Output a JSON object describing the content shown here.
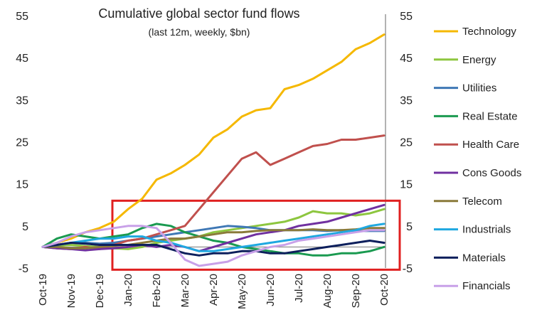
{
  "chart_data": {
    "type": "line",
    "title": "Cumulative global sector fund flows",
    "subtitle": "(last 12m, weekly, $bn)",
    "xlabel": "",
    "ylabel": "",
    "ylim": [
      -5,
      55
    ],
    "yticks": [
      55,
      45,
      35,
      25,
      15,
      5,
      -5
    ],
    "x_tick_labels": [
      "Oct-19",
      "Nov-19",
      "Dec-19",
      "Jan-20",
      "Feb-20",
      "Mar-20",
      "Apr-20",
      "May-20",
      "Jun-20",
      "Jul-20",
      "Aug-20",
      "Sep-20",
      "Oct-20"
    ],
    "x_months": [
      0,
      1,
      2,
      3,
      4,
      5,
      6,
      7,
      8,
      9,
      10,
      11,
      12
    ],
    "zero_line": true,
    "legend_position": "right",
    "highlight_box": {
      "x_range": [
        2.45,
        12.55
      ],
      "y_range": [
        -5.4,
        11.0
      ],
      "color": "#e02020"
    },
    "series": [
      {
        "name": "Technology",
        "color": "#f5b800",
        "x": [
          0,
          0.5,
          1,
          1.5,
          2,
          2.5,
          3,
          3.5,
          4,
          4.5,
          5,
          5.5,
          6,
          6.5,
          7,
          7.5,
          8,
          8.5,
          9,
          9.5,
          10,
          10.5,
          11,
          11.5,
          12
        ],
        "values": [
          0,
          1.0,
          2.0,
          3.5,
          4.5,
          6.0,
          9.0,
          11.5,
          16.0,
          17.5,
          19.5,
          22.0,
          26.0,
          28.0,
          31.0,
          32.5,
          33.0,
          37.5,
          38.5,
          40.0,
          42.0,
          44.0,
          47.0,
          48.5,
          50.5
        ]
      },
      {
        "name": "Energy",
        "color": "#8dc63f",
        "x": [
          0,
          0.5,
          1,
          1.5,
          2,
          2.5,
          3,
          3.5,
          4,
          4.5,
          5,
          5.5,
          6,
          6.5,
          7,
          7.5,
          8,
          8.5,
          9,
          9.5,
          10,
          10.5,
          11,
          11.5,
          12
        ],
        "values": [
          0,
          0.3,
          0.5,
          0.2,
          0.0,
          -0.3,
          -0.5,
          0.0,
          1.0,
          1.5,
          2.0,
          2.5,
          3.5,
          4.0,
          4.5,
          5.0,
          5.5,
          6.0,
          7.0,
          8.5,
          8.0,
          8.0,
          7.5,
          8.0,
          9.0
        ]
      },
      {
        "name": "Utilities",
        "color": "#3f78b5",
        "x": [
          0,
          0.5,
          1,
          1.5,
          2,
          2.5,
          3,
          3.5,
          4,
          4.5,
          5,
          5.5,
          6,
          6.5,
          7,
          7.5,
          8,
          8.5,
          9,
          9.5,
          10,
          10.5,
          11,
          11.5,
          12
        ],
        "values": [
          0,
          0.5,
          1.0,
          1.0,
          0.8,
          1.0,
          1.5,
          2.0,
          2.5,
          3.0,
          3.5,
          4.0,
          4.5,
          5.0,
          4.8,
          4.5,
          4.0,
          4.0,
          4.0,
          4.0,
          3.8,
          4.0,
          3.8,
          3.8,
          3.8
        ]
      },
      {
        "name": "Real Estate",
        "color": "#1a9a50",
        "x": [
          0,
          0.5,
          1,
          1.5,
          2,
          2.5,
          3,
          3.5,
          4,
          4.5,
          5,
          5.5,
          6,
          6.5,
          7,
          7.5,
          8,
          8.5,
          9,
          9.5,
          10,
          10.5,
          11,
          11.5,
          12
        ],
        "values": [
          0,
          2.0,
          3.0,
          2.5,
          2.0,
          2.5,
          3.0,
          4.5,
          5.5,
          5.0,
          3.5,
          2.5,
          1.5,
          1.0,
          0.0,
          -0.5,
          -1.0,
          -1.5,
          -1.5,
          -2.0,
          -2.0,
          -1.5,
          -1.5,
          -1.0,
          0.0
        ]
      },
      {
        "name": "Health Care",
        "color": "#c0504d",
        "x": [
          0,
          0.5,
          1,
          1.5,
          2,
          2.5,
          3,
          3.5,
          4,
          4.5,
          5,
          5.5,
          6,
          6.5,
          7,
          7.5,
          8,
          8.5,
          9,
          9.5,
          10,
          10.5,
          11,
          11.5,
          12
        ],
        "values": [
          0,
          -0.3,
          -0.5,
          0.0,
          -0.5,
          0.5,
          1.5,
          2.0,
          3.0,
          4.0,
          5.0,
          9.0,
          13.0,
          17.0,
          21.0,
          22.5,
          19.5,
          21.0,
          22.5,
          24.0,
          24.5,
          25.5,
          25.5,
          26.0,
          26.5
        ]
      },
      {
        "name": "Cons Goods",
        "color": "#7030a0",
        "x": [
          0,
          0.5,
          1,
          1.5,
          2,
          2.5,
          3,
          3.5,
          4,
          4.5,
          5,
          5.5,
          6,
          6.5,
          7,
          7.5,
          8,
          8.5,
          9,
          9.5,
          10,
          10.5,
          11,
          11.5,
          12
        ],
        "values": [
          0,
          -0.3,
          -0.5,
          -0.8,
          -0.5,
          -0.3,
          0.0,
          0.5,
          0.0,
          0.5,
          0.0,
          -1.0,
          0.0,
          1.0,
          2.0,
          3.0,
          3.5,
          4.0,
          5.0,
          5.5,
          6.0,
          7.0,
          8.0,
          9.0,
          10.0
        ]
      },
      {
        "name": "Telecom",
        "color": "#8a7a3a",
        "x": [
          0,
          0.5,
          1,
          1.5,
          2,
          2.5,
          3,
          3.5,
          4,
          4.5,
          5,
          5.5,
          6,
          6.5,
          7,
          7.5,
          8,
          8.5,
          9,
          9.5,
          10,
          10.5,
          11,
          11.5,
          12
        ],
        "values": [
          0,
          0.0,
          -0.3,
          -0.3,
          0.0,
          0.3,
          0.5,
          1.0,
          1.5,
          2.0,
          2.0,
          2.5,
          3.0,
          3.5,
          3.5,
          3.8,
          4.0,
          4.0,
          4.0,
          4.2,
          4.0,
          4.0,
          4.2,
          4.5,
          4.5
        ]
      },
      {
        "name": "Industrials",
        "color": "#1fa8e0",
        "x": [
          0,
          0.5,
          1,
          1.5,
          2,
          2.5,
          3,
          3.5,
          4,
          4.5,
          5,
          5.5,
          6,
          6.5,
          7,
          7.5,
          8,
          8.5,
          9,
          9.5,
          10,
          10.5,
          11,
          11.5,
          12
        ],
        "values": [
          0,
          0.5,
          1.0,
          1.5,
          2.0,
          2.0,
          2.5,
          2.5,
          1.5,
          1.0,
          0.0,
          -1.0,
          -1.0,
          -0.5,
          0.0,
          0.5,
          1.0,
          1.5,
          2.0,
          2.5,
          3.0,
          3.5,
          4.0,
          5.0,
          5.5
        ]
      },
      {
        "name": "Materials",
        "color": "#0d1f5c",
        "x": [
          0,
          0.5,
          1,
          1.5,
          2,
          2.5,
          3,
          3.5,
          4,
          4.5,
          5,
          5.5,
          6,
          6.5,
          7,
          7.5,
          8,
          8.5,
          9,
          9.5,
          10,
          10.5,
          11,
          11.5,
          12
        ],
        "values": [
          0,
          0.5,
          1.0,
          0.8,
          0.5,
          0.5,
          0.5,
          0.5,
          0.5,
          -0.5,
          -1.5,
          -2.0,
          -1.5,
          -1.5,
          -1.0,
          -1.0,
          -1.5,
          -1.5,
          -1.0,
          -0.5,
          0.0,
          0.5,
          1.0,
          1.5,
          1.0
        ]
      },
      {
        "name": "Financials",
        "color": "#c8a0e8",
        "x": [
          0,
          0.5,
          1,
          1.5,
          2,
          2.5,
          3,
          3.5,
          4,
          4.5,
          5,
          5.5,
          6,
          6.5,
          7,
          7.5,
          8,
          8.5,
          9,
          9.5,
          10,
          10.5,
          11,
          11.5,
          12
        ],
        "values": [
          0,
          1.0,
          2.5,
          3.5,
          4.0,
          4.5,
          5.0,
          5.0,
          4.5,
          1.0,
          -3.0,
          -4.5,
          -4.0,
          -3.5,
          -2.0,
          -1.0,
          0.0,
          0.5,
          1.5,
          2.0,
          2.5,
          3.0,
          3.5,
          4.0,
          4.0
        ]
      }
    ]
  }
}
